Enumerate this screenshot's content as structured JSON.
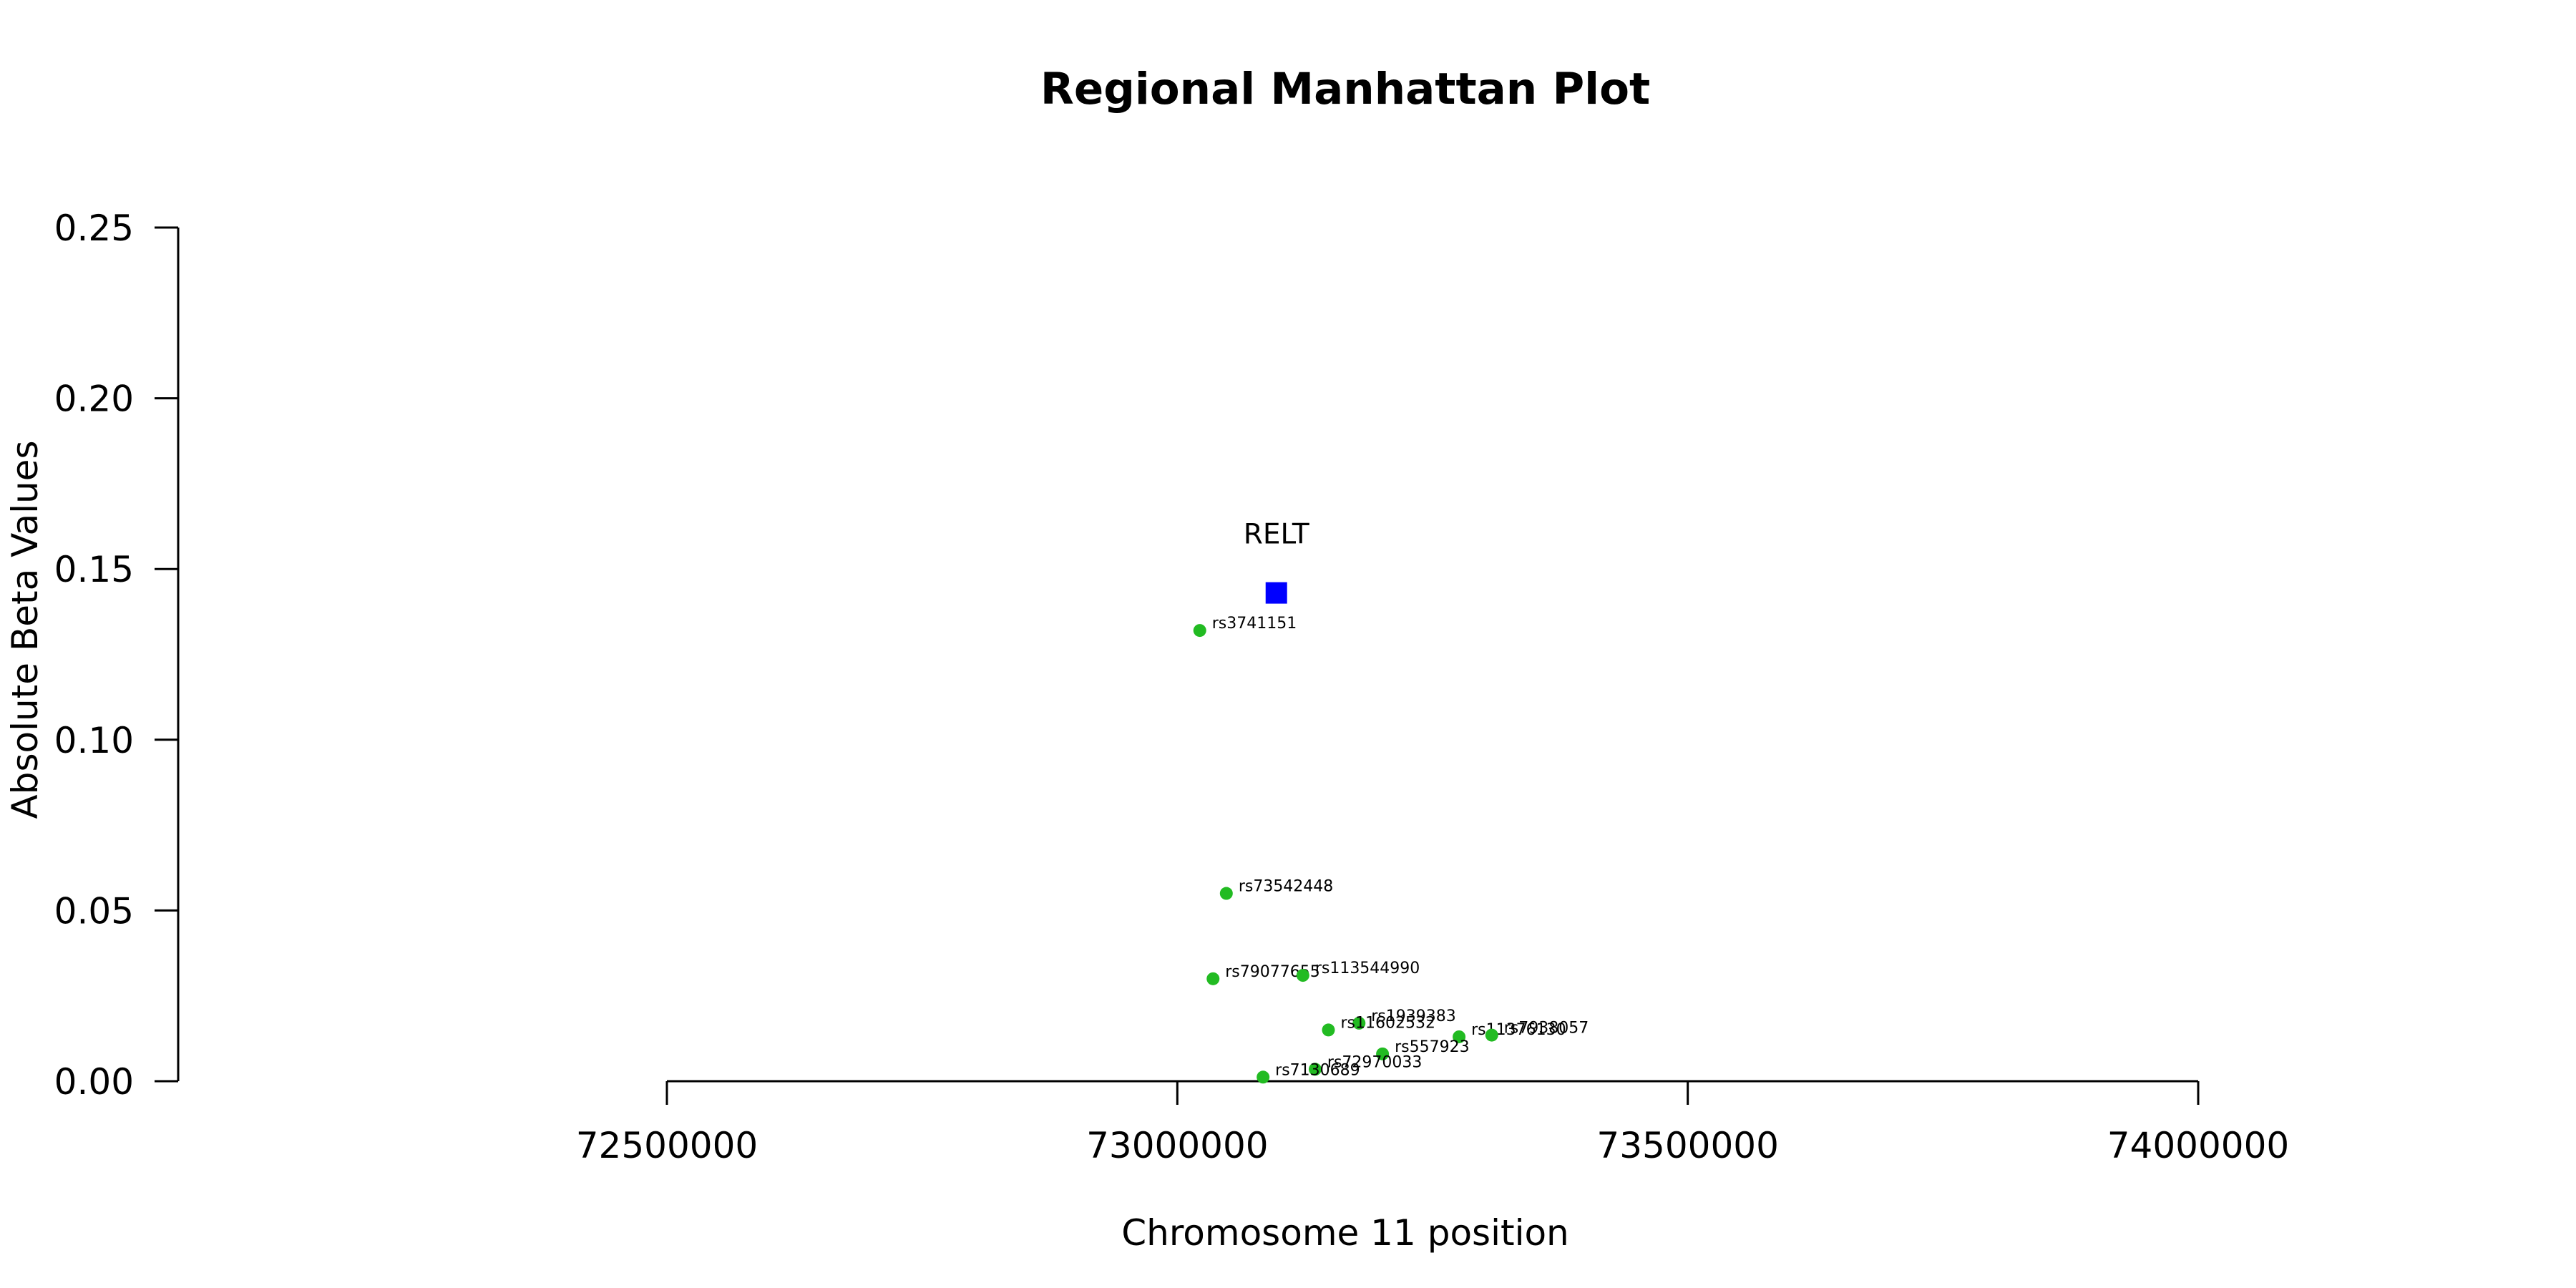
{
  "chart_data": {
    "type": "scatter",
    "title": "Regional Manhattan Plot",
    "xlabel": "Chromosome 11 position",
    "ylabel": "Absolute Beta Values",
    "xlim": [
      72500000,
      74000000
    ],
    "ylim": [
      0,
      0.25
    ],
    "x_ticks": [
      72500000,
      73000000,
      73500000,
      74000000
    ],
    "y_ticks": [
      0.0,
      0.05,
      0.1,
      0.15,
      0.2,
      0.25
    ],
    "x_tick_labels": [
      "72500000",
      "73000000",
      "73500000",
      "74000000"
    ],
    "y_tick_labels": [
      "0.00",
      "0.05",
      "0.10",
      "0.15",
      "0.20",
      "0.25"
    ],
    "grid": false,
    "snp_color": "#22bb22",
    "gene_color": "#0000ff",
    "series": [
      {
        "marker": "circle",
        "points": [
          {
            "label": "rs3741151",
            "x": 73022000,
            "y": 0.132
          },
          {
            "label": "rs73542448",
            "x": 73048000,
            "y": 0.055
          },
          {
            "label": "rs79077655",
            "x": 73035000,
            "y": 0.03
          },
          {
            "label": "rs113544990",
            "x": 73123000,
            "y": 0.031
          },
          {
            "label": "rs1939383",
            "x": 73178000,
            "y": 0.017
          },
          {
            "label": "rs11602532",
            "x": 73148000,
            "y": 0.015
          },
          {
            "label": "rs11376130",
            "x": 73276000,
            "y": 0.013
          },
          {
            "label": "rs7938057",
            "x": 73308000,
            "y": 0.0135
          },
          {
            "label": "rs557923",
            "x": 73201000,
            "y": 0.008
          },
          {
            "label": "rs72970033",
            "x": 73135000,
            "y": 0.0035
          },
          {
            "label": "rs7130689",
            "x": 73084000,
            "y": 0.0012
          }
        ]
      },
      {
        "marker": "square",
        "points": [
          {
            "label": "RELT",
            "x": 73097000,
            "y": 0.143
          }
        ]
      }
    ]
  }
}
